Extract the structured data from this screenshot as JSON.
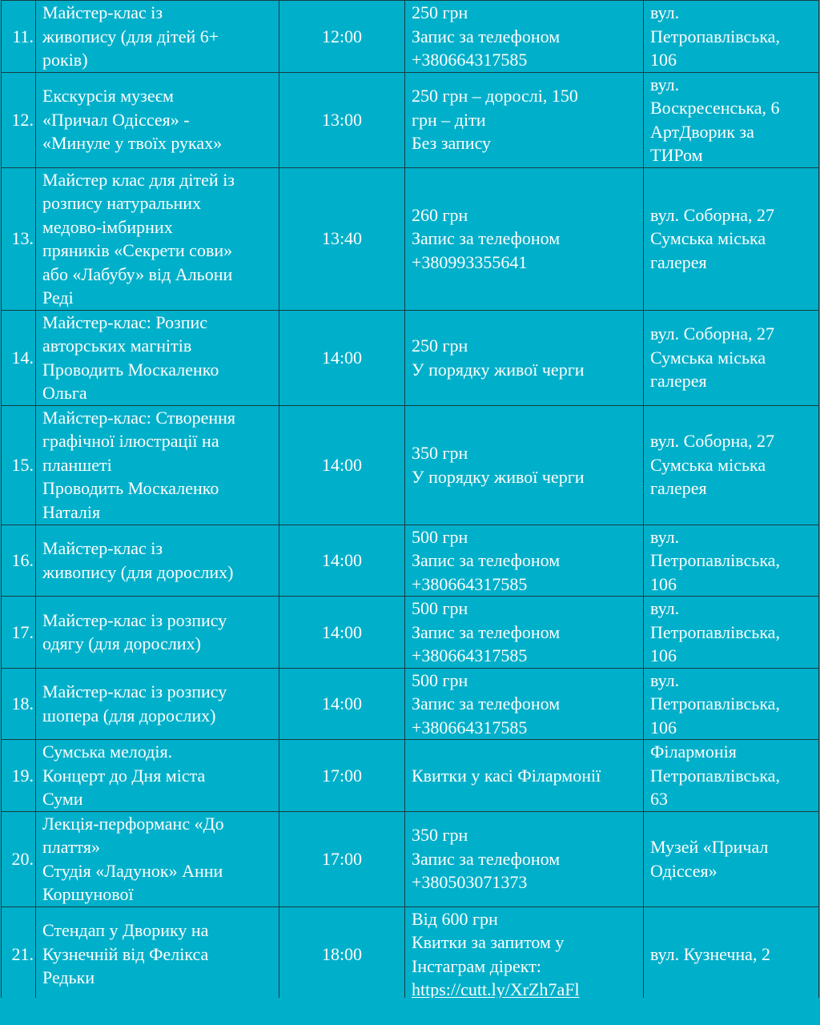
{
  "rows": [
    {
      "num": "11.",
      "event": [
        "Майстер-клас із",
        "живопису (для дітей 6+",
        "років)"
      ],
      "time": "12:00",
      "price": [
        "250 грн",
        "Запис за телефоном",
        "+380664317585"
      ],
      "address": [
        "вул.",
        "Петропавлівська,",
        "106"
      ]
    },
    {
      "num": "12.",
      "event": [
        "Екскурсія музеєм",
        "«Причал Одіссея» -",
        "«Минуле у твоїх руках»"
      ],
      "time": "13:00",
      "price": [
        "250 грн – дорослі, 150",
        "грн – діти",
        "Без запису"
      ],
      "address": [
        "вул.",
        "Воскресенська, 6",
        "АртДворик за",
        "ТИРом"
      ]
    },
    {
      "num": "13.",
      "event": [
        "Майстер клас для дітей із",
        "розпису натуральних",
        "медово-імбирних",
        "пряників «Секрети сови»",
        "або «Лабубу» від Альони",
        "Реді"
      ],
      "time": "13:40",
      "price": [
        "260 грн",
        "Запис за телефоном",
        "+380993355641"
      ],
      "address": [
        "вул. Соборна, 27",
        "Сумська міська",
        "галерея"
      ]
    },
    {
      "num": "14.",
      "event": [
        "Майстер-клас: Розпис",
        "авторських магнітів",
        "Проводить Москаленко",
        "Ольга"
      ],
      "time": "14:00",
      "price": [
        "250 грн",
        "У порядку живої черги"
      ],
      "address": [
        "вул. Соборна, 27",
        "Сумська міська",
        "галерея"
      ]
    },
    {
      "num": "15.",
      "event": [
        "Майстер-клас: Створення",
        "графічної ілюстрації на",
        "планшеті",
        "Проводить Москаленко",
        "Наталія"
      ],
      "time": "14:00",
      "price": [
        "350 грн",
        "У порядку живої черги"
      ],
      "address": [
        "вул. Соборна, 27",
        "Сумська міська",
        "галерея"
      ]
    },
    {
      "num": "16.",
      "event": [
        "Майстер-клас із",
        "живопису (для дорослих)"
      ],
      "time": "14:00",
      "price": [
        "500 грн",
        "Запис за телефоном",
        "+380664317585"
      ],
      "address": [
        "вул.",
        "Петропавлівська,",
        "106"
      ]
    },
    {
      "num": "17.",
      "event": [
        "Майстер-клас із розпису",
        "одягу (для дорослих)"
      ],
      "time": "14:00",
      "price": [
        "500 грн",
        "Запис за телефоном",
        "+380664317585"
      ],
      "address": [
        "вул.",
        "Петропавлівська,",
        "106"
      ]
    },
    {
      "num": "18.",
      "event": [
        "Майстер-клас із розпису",
        "шопера (для дорослих)"
      ],
      "time": "14:00",
      "price": [
        "500 грн",
        "Запис за телефоном",
        "+380664317585"
      ],
      "address": [
        "вул.",
        "Петропавлівська,",
        "106"
      ]
    },
    {
      "num": "19.",
      "event": [
        "Сумська мелодія.",
        "Концерт до Дня міста",
        "Суми"
      ],
      "time": "17:00",
      "price": [
        "Квитки у касі Філармонії"
      ],
      "address": [
        "Філармонія",
        "Петропавлівська,",
        "63"
      ]
    },
    {
      "num": "20.",
      "event": [
        "Лекція-перформанс «До",
        "плаття»",
        "Студія «Ладунок» Анни",
        "Коршунової"
      ],
      "time": "17:00",
      "price": [
        "350 грн",
        "Запис за телефоном",
        "+380503071373"
      ],
      "address": [
        "Музей «Причал",
        "Одіссея»"
      ]
    },
    {
      "num": "21.",
      "event": [
        "Стендап у Дворику на",
        "Кузнечній від Фелікса",
        "Редьки"
      ],
      "time": "18:00",
      "price": [
        "Від 600 грн",
        "Квитки за запитом у",
        "Інстаграм дірект:"
      ],
      "price_link": "https://cutt.ly/XrZh7aFl",
      "address": [
        "вул. Кузнечна, 2"
      ]
    }
  ]
}
